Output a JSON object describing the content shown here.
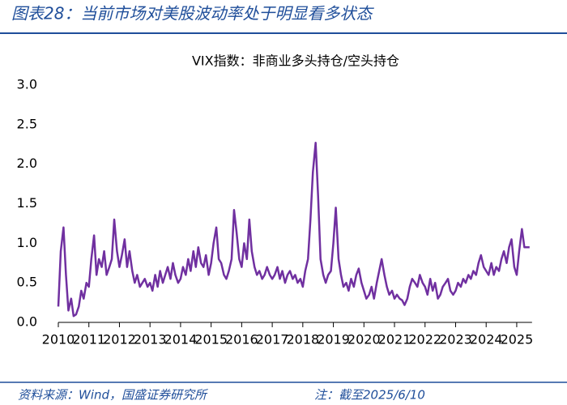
{
  "chart_data": {
    "type": "line",
    "figure_title": "图表28：当前市场对美股波动率处于明显看多状态",
    "title": "VIX指数：非商业多头持仓/空头持仓",
    "source": "资料来源：Wind，国盛证券研究所",
    "note": "注：截至2025/6/10",
    "xlim": [
      2010,
      2025.5
    ],
    "xticks": [
      2010,
      2011,
      2012,
      2013,
      2014,
      2015,
      2016,
      2017,
      2018,
      2019,
      2020,
      2021,
      2022,
      2023,
      2024,
      2025
    ],
    "ylim": [
      0,
      3
    ],
    "yticks": [
      {
        "value": 0,
        "label": "0.0"
      },
      0.5,
      {
        "value": 1,
        "label": "1.0"
      },
      1.5,
      {
        "value": 2,
        "label": "2.0"
      },
      2.5,
      {
        "value": 3,
        "label": "3.0"
      }
    ],
    "grid": false,
    "x": [
      2010.0,
      2010.08,
      2010.17,
      2010.25,
      2010.33,
      2010.42,
      2010.5,
      2010.58,
      2010.67,
      2010.75,
      2010.83,
      2010.92,
      2011.0,
      2011.08,
      2011.17,
      2011.25,
      2011.33,
      2011.42,
      2011.5,
      2011.58,
      2011.67,
      2011.75,
      2011.83,
      2011.92,
      2012.0,
      2012.08,
      2012.17,
      2012.25,
      2012.33,
      2012.42,
      2012.5,
      2012.58,
      2012.67,
      2012.75,
      2012.83,
      2012.92,
      2013.0,
      2013.08,
      2013.17,
      2013.25,
      2013.33,
      2013.42,
      2013.5,
      2013.58,
      2013.67,
      2013.75,
      2013.83,
      2013.92,
      2014.0,
      2014.08,
      2014.17,
      2014.25,
      2014.33,
      2014.42,
      2014.5,
      2014.58,
      2014.67,
      2014.75,
      2014.83,
      2014.92,
      2015.0,
      2015.08,
      2015.17,
      2015.25,
      2015.33,
      2015.42,
      2015.5,
      2015.58,
      2015.67,
      2015.75,
      2015.83,
      2015.92,
      2016.0,
      2016.08,
      2016.17,
      2016.25,
      2016.33,
      2016.42,
      2016.5,
      2016.58,
      2016.67,
      2016.75,
      2016.83,
      2016.92,
      2017.0,
      2017.08,
      2017.17,
      2017.25,
      2017.33,
      2017.42,
      2017.5,
      2017.58,
      2017.67,
      2017.75,
      2017.83,
      2017.92,
      2018.0,
      2018.08,
      2018.17,
      2018.25,
      2018.33,
      2018.42,
      2018.5,
      2018.58,
      2018.67,
      2018.75,
      2018.83,
      2018.92,
      2019.0,
      2019.08,
      2019.17,
      2019.25,
      2019.33,
      2019.42,
      2019.5,
      2019.58,
      2019.67,
      2019.75,
      2019.83,
      2019.92,
      2020.0,
      2020.08,
      2020.17,
      2020.25,
      2020.33,
      2020.42,
      2020.5,
      2020.58,
      2020.67,
      2020.75,
      2020.83,
      2020.92,
      2021.0,
      2021.08,
      2021.17,
      2021.25,
      2021.33,
      2021.42,
      2021.5,
      2021.58,
      2021.67,
      2021.75,
      2021.83,
      2021.92,
      2022.0,
      2022.08,
      2022.17,
      2022.25,
      2022.33,
      2022.42,
      2022.5,
      2022.58,
      2022.67,
      2022.75,
      2022.83,
      2022.92,
      2023.0,
      2023.08,
      2023.17,
      2023.25,
      2023.33,
      2023.42,
      2023.5,
      2023.58,
      2023.67,
      2023.75,
      2023.83,
      2023.92,
      2024.0,
      2024.08,
      2024.17,
      2024.25,
      2024.33,
      2024.42,
      2024.5,
      2024.58,
      2024.67,
      2024.75,
      2024.83,
      2024.92,
      2025.0,
      2025.08,
      2025.17,
      2025.25,
      2025.33,
      2025.42
    ],
    "series": [
      {
        "name": "VIX",
        "color": "#7030a0",
        "values": [
          0.2,
          0.9,
          1.2,
          0.6,
          0.15,
          0.3,
          0.08,
          0.1,
          0.2,
          0.4,
          0.3,
          0.5,
          0.45,
          0.8,
          1.1,
          0.6,
          0.8,
          0.7,
          0.9,
          0.6,
          0.7,
          0.8,
          1.3,
          0.9,
          0.7,
          0.85,
          1.05,
          0.7,
          0.9,
          0.65,
          0.5,
          0.6,
          0.45,
          0.5,
          0.55,
          0.45,
          0.5,
          0.4,
          0.6,
          0.45,
          0.65,
          0.5,
          0.6,
          0.7,
          0.55,
          0.75,
          0.6,
          0.5,
          0.55,
          0.7,
          0.6,
          0.8,
          0.65,
          0.9,
          0.7,
          0.95,
          0.75,
          0.7,
          0.85,
          0.6,
          0.75,
          1.0,
          1.2,
          0.8,
          0.75,
          0.6,
          0.55,
          0.65,
          0.8,
          1.42,
          1.15,
          0.8,
          0.7,
          1.0,
          0.8,
          1.3,
          0.9,
          0.7,
          0.6,
          0.65,
          0.55,
          0.6,
          0.7,
          0.6,
          0.55,
          0.6,
          0.7,
          0.55,
          0.65,
          0.5,
          0.6,
          0.65,
          0.55,
          0.6,
          0.5,
          0.55,
          0.45,
          0.65,
          0.8,
          1.3,
          1.9,
          2.27,
          1.6,
          0.8,
          0.6,
          0.5,
          0.6,
          0.65,
          1.0,
          1.45,
          0.8,
          0.6,
          0.45,
          0.5,
          0.4,
          0.55,
          0.45,
          0.6,
          0.68,
          0.5,
          0.4,
          0.3,
          0.35,
          0.45,
          0.3,
          0.5,
          0.65,
          0.8,
          0.6,
          0.45,
          0.35,
          0.4,
          0.3,
          0.35,
          0.3,
          0.28,
          0.22,
          0.3,
          0.45,
          0.55,
          0.5,
          0.45,
          0.6,
          0.5,
          0.45,
          0.35,
          0.55,
          0.4,
          0.5,
          0.3,
          0.35,
          0.45,
          0.5,
          0.55,
          0.4,
          0.35,
          0.4,
          0.5,
          0.45,
          0.55,
          0.5,
          0.6,
          0.55,
          0.65,
          0.6,
          0.75,
          0.85,
          0.7,
          0.65,
          0.6,
          0.75,
          0.6,
          0.7,
          0.65,
          0.8,
          0.9,
          0.75,
          0.95,
          1.05,
          0.7,
          0.6,
          0.9,
          1.18,
          0.95,
          0.95,
          0.95
        ]
      }
    ]
  }
}
